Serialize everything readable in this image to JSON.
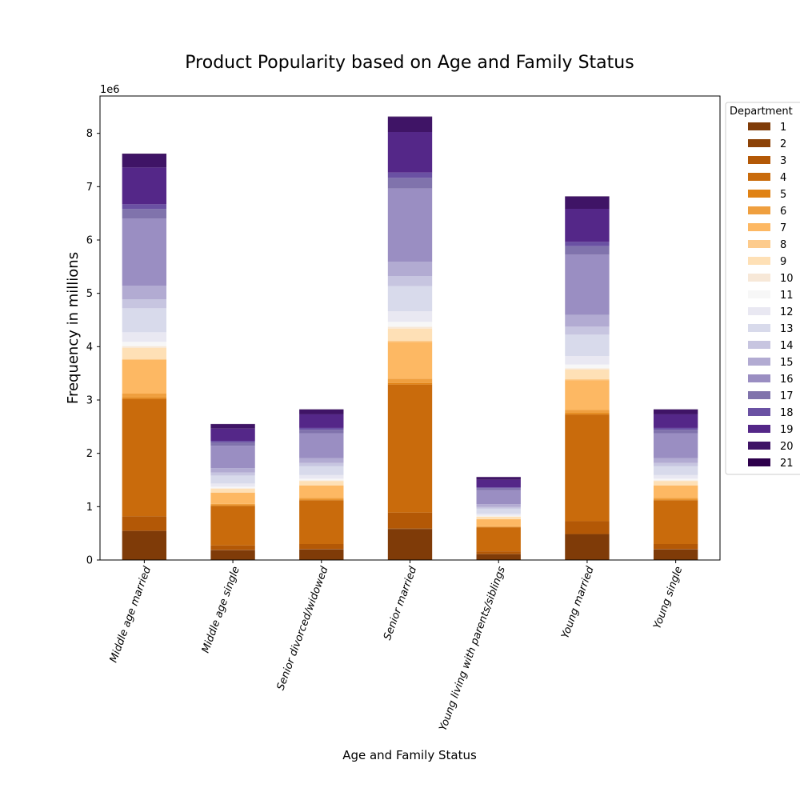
{
  "chart_data": {
    "type": "bar",
    "stacked": true,
    "title": "Product Popularity based on Age and Family Status",
    "xlabel": "Age and Family Status",
    "ylabel": "Frequency in millions",
    "y_offset_label": "1e6",
    "ylim": [
      0,
      8700000
    ],
    "y_ticks": [
      0,
      1000000,
      2000000,
      3000000,
      4000000,
      5000000,
      6000000,
      7000000,
      8000000
    ],
    "y_tick_labels": [
      "0",
      "1",
      "2",
      "3",
      "4",
      "5",
      "6",
      "7",
      "8"
    ],
    "grid": false,
    "legend": {
      "title": "Department",
      "placement": "outside-top-right"
    },
    "categories": [
      "Middle age married",
      "Middle age single",
      "Senior divorced/widowed",
      "Senior married",
      "Young living with parents/siblings",
      "Young married",
      "Young single"
    ],
    "series": [
      {
        "name": "1",
        "color": "#7f3b08",
        "values": [
          540000,
          185000,
          200000,
          580000,
          110000,
          480000,
          200000
        ]
      },
      {
        "name": "2",
        "color": "#8c4207",
        "values": [
          10000,
          5000,
          5000,
          10000,
          3000,
          8000,
          5000
        ]
      },
      {
        "name": "3",
        "color": "#b35806",
        "values": [
          270000,
          85000,
          95000,
          300000,
          50000,
          240000,
          95000
        ]
      },
      {
        "name": "4",
        "color": "#c96b0c",
        "values": [
          2200000,
          740000,
          820000,
          2400000,
          450000,
          2000000,
          820000
        ]
      },
      {
        "name": "5",
        "color": "#e08214",
        "values": [
          30000,
          12000,
          12000,
          30000,
          7000,
          25000,
          12000
        ]
      },
      {
        "name": "6",
        "color": "#ef9f3f",
        "values": [
          70000,
          25000,
          30000,
          80000,
          14000,
          60000,
          30000
        ]
      },
      {
        "name": "7",
        "color": "#fdb863",
        "values": [
          630000,
          210000,
          235000,
          690000,
          130000,
          560000,
          235000
        ]
      },
      {
        "name": "8",
        "color": "#fdcb8c",
        "values": [
          20000,
          8000,
          8000,
          20000,
          5000,
          17000,
          8000
        ]
      },
      {
        "name": "9",
        "color": "#fee0b6",
        "values": [
          210000,
          68000,
          77000,
          230000,
          42000,
          180000,
          77000
        ]
      },
      {
        "name": "10",
        "color": "#f7e8d8",
        "values": [
          30000,
          10000,
          12000,
          35000,
          6000,
          25000,
          12000
        ]
      },
      {
        "name": "11",
        "color": "#f7f7f7",
        "values": [
          80000,
          26000,
          30000,
          90000,
          16000,
          70000,
          30000
        ]
      },
      {
        "name": "12",
        "color": "#e9e8f2",
        "values": [
          180000,
          60000,
          68000,
          200000,
          37000,
          160000,
          68000
        ]
      },
      {
        "name": "13",
        "color": "#d8daeb",
        "values": [
          450000,
          150000,
          165000,
          470000,
          92000,
          400000,
          165000
        ]
      },
      {
        "name": "14",
        "color": "#c7c5e0",
        "values": [
          170000,
          57000,
          63000,
          190000,
          35000,
          150000,
          63000
        ]
      },
      {
        "name": "15",
        "color": "#b2abd2",
        "values": [
          250000,
          83000,
          92000,
          270000,
          51000,
          220000,
          92000
        ]
      },
      {
        "name": "16",
        "color": "#9a8ec2",
        "values": [
          1260000,
          420000,
          465000,
          1370000,
          260000,
          1130000,
          465000
        ]
      },
      {
        "name": "17",
        "color": "#8073ac",
        "values": [
          180000,
          60000,
          66000,
          200000,
          37000,
          160000,
          66000
        ]
      },
      {
        "name": "18",
        "color": "#6a51a3",
        "values": [
          90000,
          30000,
          33000,
          100000,
          18000,
          80000,
          33000
        ]
      },
      {
        "name": "19",
        "color": "#542788",
        "values": [
          690000,
          230000,
          255000,
          760000,
          140000,
          620000,
          255000
        ]
      },
      {
        "name": "20",
        "color": "#3f1466",
        "values": [
          250000,
          84000,
          92000,
          280000,
          52000,
          225000,
          92000
        ]
      },
      {
        "name": "21",
        "color": "#2d004b",
        "values": [
          10000,
          3000,
          3000,
          10000,
          2000,
          8000,
          3000
        ]
      }
    ]
  }
}
